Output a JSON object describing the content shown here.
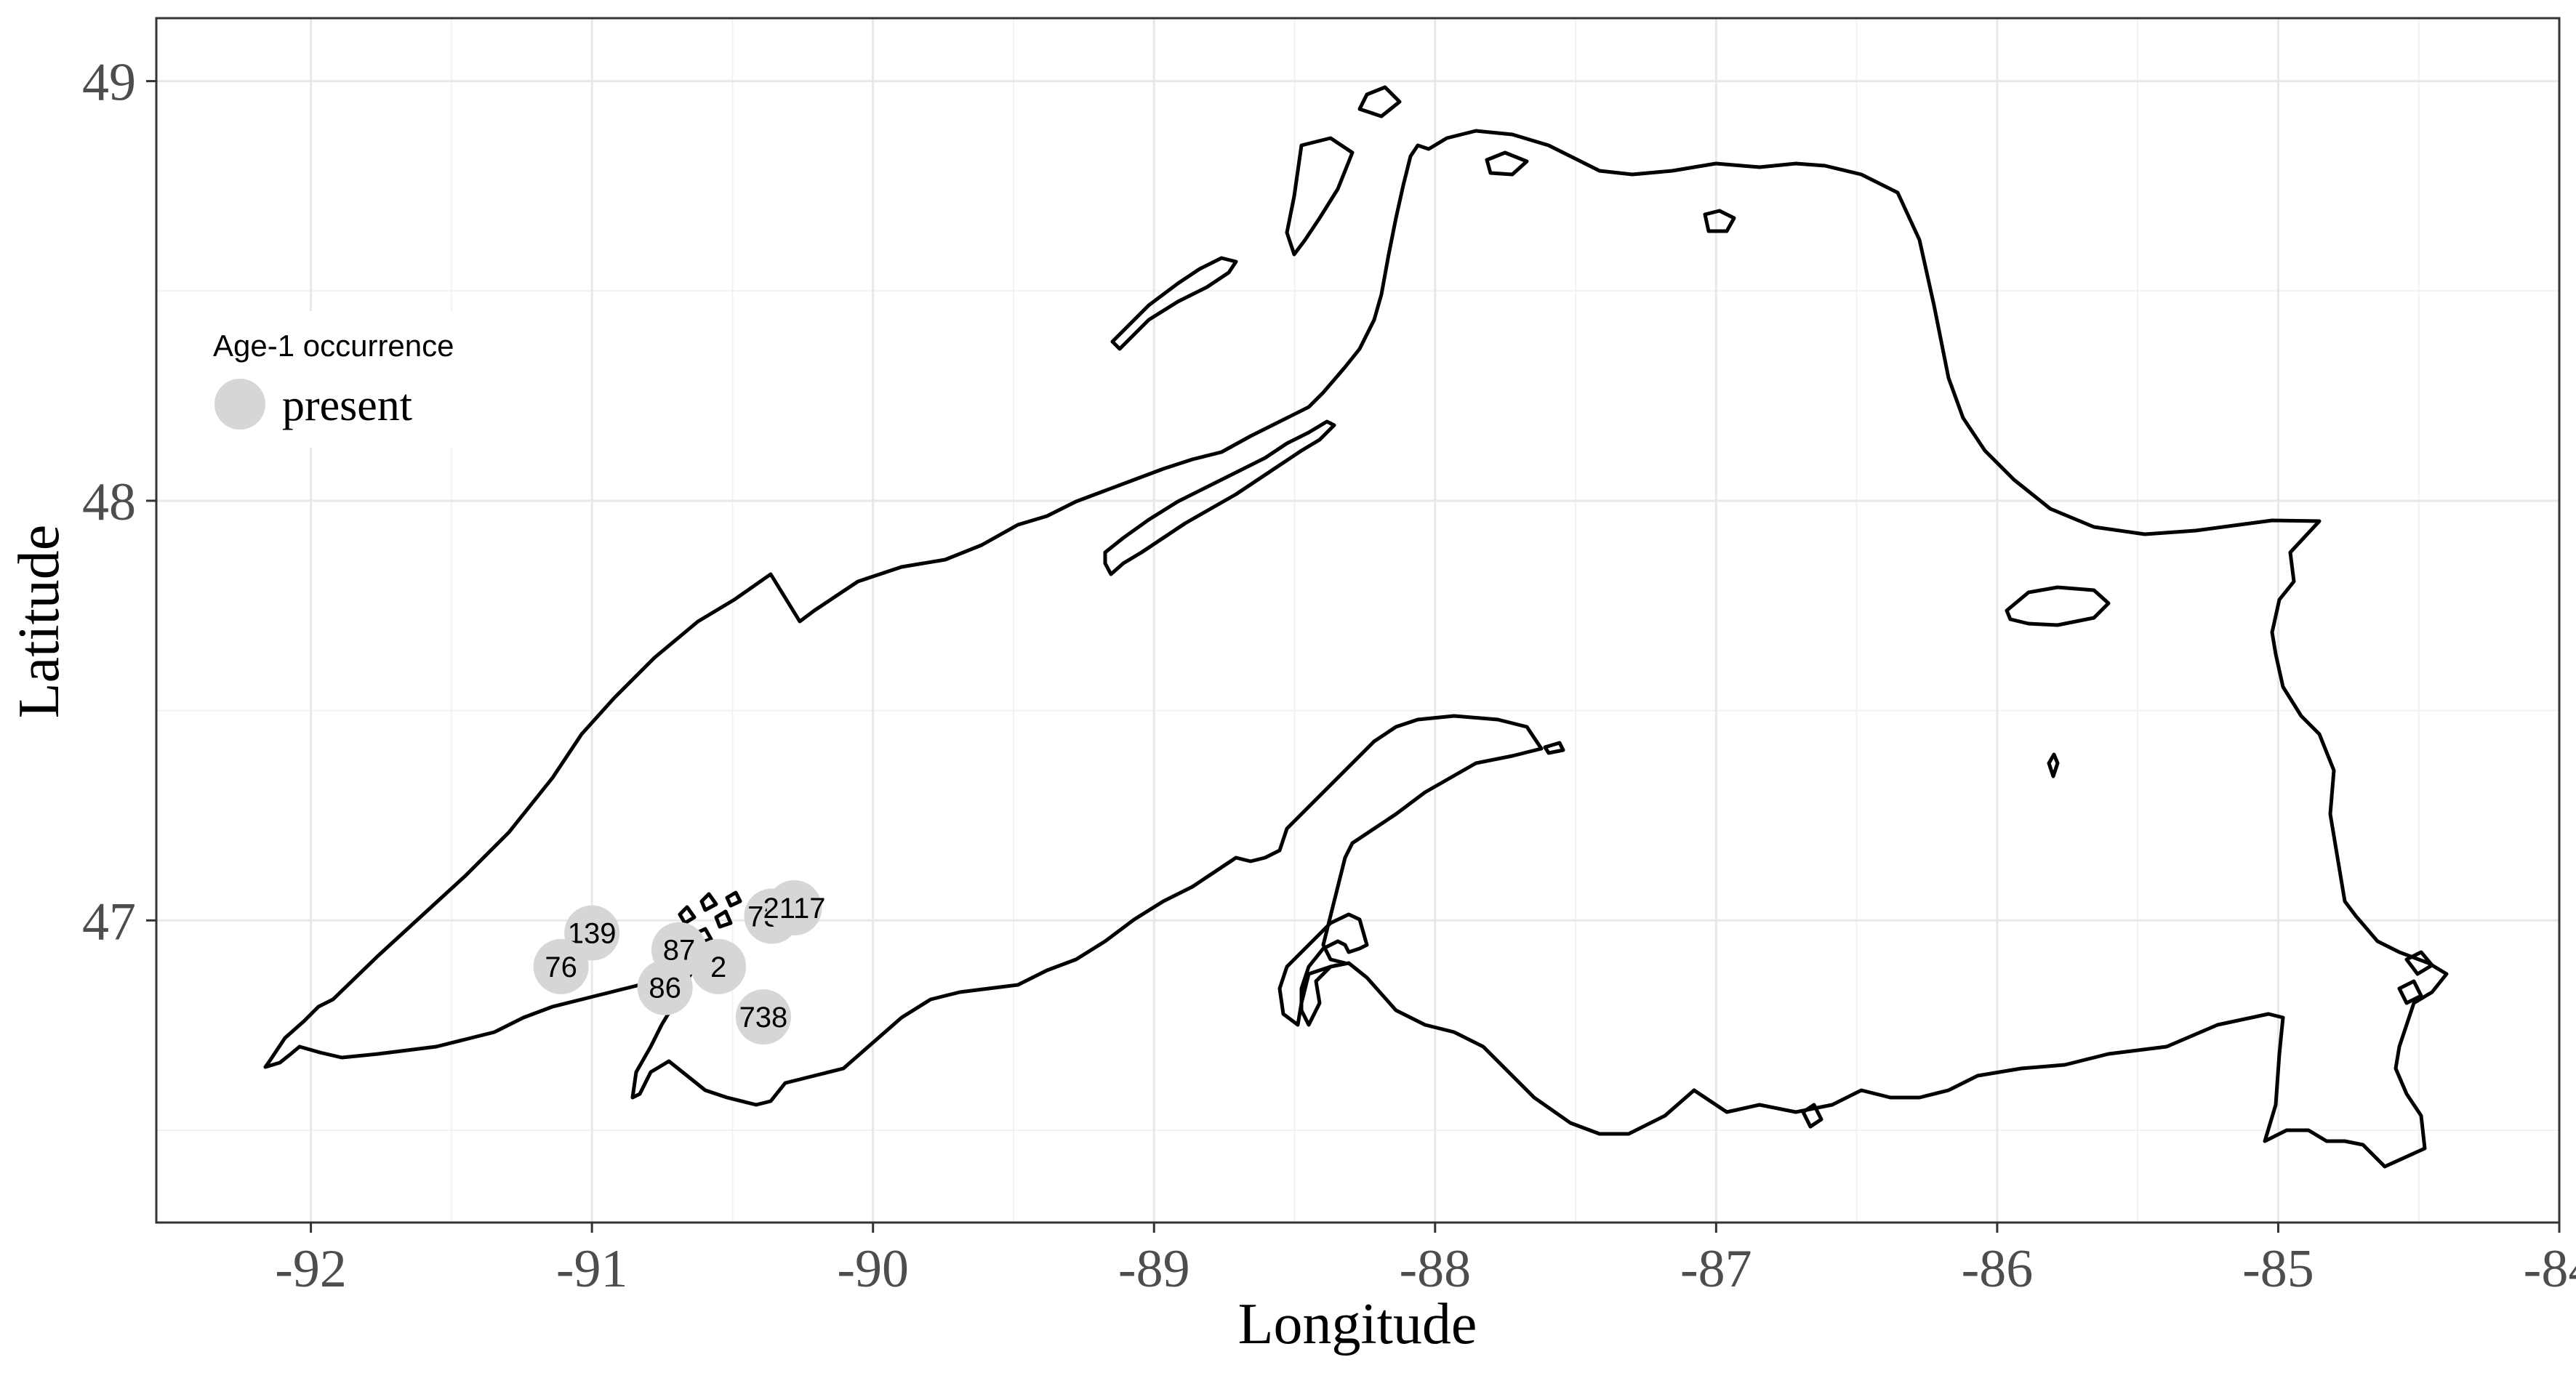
{
  "map": {
    "xlabel": "Longitude",
    "ylabel": "Latitude",
    "xticks": [
      -92,
      -91,
      -90,
      -89,
      -88,
      -87,
      -86,
      -85,
      -84
    ],
    "yticks": [
      47,
      48,
      49
    ],
    "xlim": [
      -92.55,
      -84.0
    ],
    "ylim": [
      46.28,
      49.15
    ],
    "legend": {
      "title": "Age-1 occurrence",
      "items": [
        {
          "label": "present",
          "color": "#d6d6d6"
        }
      ],
      "placement": "top-left"
    },
    "colors": {
      "point": "#d6d6d6",
      "shoreline": "#000000",
      "grid": "#ebebeb",
      "panel_border": "#333333"
    },
    "sites": [
      {
        "label": "139",
        "lon": -91.0,
        "lat": 46.97
      },
      {
        "label": "76",
        "lon": -91.11,
        "lat": 46.89
      },
      {
        "label": "87",
        "lon": -90.69,
        "lat": 46.93
      },
      {
        "label": "2",
        "lon": -90.55,
        "lat": 46.89
      },
      {
        "label": "86",
        "lon": -90.74,
        "lat": 46.84
      },
      {
        "label": "738",
        "lon": -90.39,
        "lat": 46.77
      },
      {
        "label": "731",
        "lon": -90.36,
        "lat": 47.01
      },
      {
        "label": "2117",
        "lon": -90.28,
        "lat": 47.03
      }
    ]
  }
}
